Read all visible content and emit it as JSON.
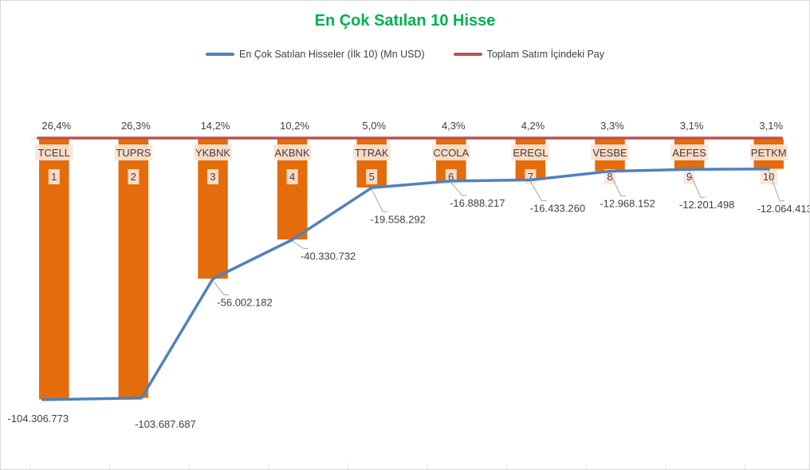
{
  "chart_data": {
    "type": "bar",
    "title": "En Çok Satılan 10 Hisse",
    "categories": [
      "TCELL",
      "TUPRS",
      "YKBNK",
      "AKBNK",
      "TTRAK",
      "CCOLA",
      "EREGL",
      "VESBE",
      "AEFES",
      "PETKM"
    ],
    "ranks": [
      "1",
      "2",
      "3",
      "4",
      "5",
      "6",
      "7",
      "8",
      "9",
      "10"
    ],
    "series": [
      {
        "name": "En Çok Satılan Hisseler (İlk 10) (Mn USD)",
        "type": "bar+line",
        "values": [
          -104306773,
          -103687687,
          -56002182,
          -40330732,
          -19558292,
          -16888217,
          -16433260,
          -12968152,
          -12201498,
          -12064413
        ],
        "value_labels": [
          "-104.306.773",
          "-103.687.687",
          "-56.002.182",
          "-40.330.732",
          "-19.558.292",
          "-16.888.217",
          "-16.433.260",
          "-12.968.152",
          "-12.201.498",
          "-12.064.413"
        ]
      },
      {
        "name": "Toplam Satım İçindeki Pay",
        "type": "line",
        "values": [
          26.4,
          26.3,
          14.2,
          10.2,
          5.0,
          4.3,
          4.2,
          3.3,
          3.1,
          3.1
        ],
        "value_labels": [
          "26,4%",
          "26,3%",
          "14,2%",
          "10,2%",
          "5,0%",
          "4,3%",
          "4,2%",
          "3,3%",
          "3,1%",
          "3,1%"
        ]
      }
    ],
    "ylim": [
      -105000000,
      0
    ],
    "grid": false,
    "legend_position": "top",
    "colors": {
      "bar": "#e46c0a",
      "line": "#4f81bd",
      "share_line": "#c0504d",
      "title": "#00b050",
      "category_label_bg": "#fbe5d6",
      "text": "#404040",
      "leader": "#a6a6a6"
    }
  }
}
